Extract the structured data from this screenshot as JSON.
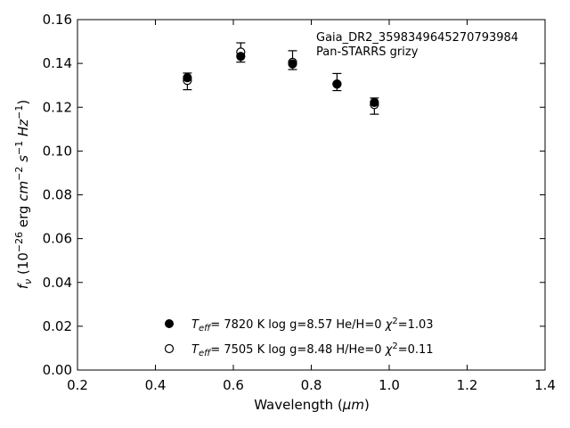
{
  "chart_data": {
    "type": "scatter",
    "title": "",
    "xlabel": "Wavelength (",
    "xlabel_unit": "μm",
    "xlabel_close": ")",
    "ylabel_parts": {
      "f": "f",
      "nu": "ν",
      "open": " (10",
      "exp_a": "−26",
      "erg": " erg ",
      "cm": "cm",
      "exp_b": "−2",
      "s": " s",
      "exp_c": "−1",
      "hz": " Hz",
      "exp_d": "−1",
      "close": ")"
    },
    "xlim": [
      0.2,
      1.4
    ],
    "ylim": [
      0.0,
      0.16
    ],
    "x_ticks": [
      "0.2",
      "0.4",
      "0.6",
      "0.8",
      "1.0",
      "1.2",
      "1.4"
    ],
    "y_ticks": [
      "0.00",
      "0.02",
      "0.04",
      "0.06",
      "0.08",
      "0.10",
      "0.12",
      "0.14",
      "0.16"
    ],
    "grid": false,
    "annotation": [
      "Gaia_DR2_3598349645270793984",
      "Pan-STARRS grizy"
    ],
    "observed": {
      "x": [
        0.482,
        0.619,
        0.752,
        0.866,
        0.962
      ],
      "y": [
        0.1318,
        0.145,
        0.1415,
        0.1315,
        0.1205
      ],
      "yerr": [
        0.0038,
        0.0044,
        0.0043,
        0.0039,
        0.0037
      ]
    },
    "series": [
      {
        "marker": "filled",
        "x": [
          0.482,
          0.619,
          0.752,
          0.866,
          0.962
        ],
        "y": [
          0.1335,
          0.1432,
          0.1398,
          0.1306,
          0.1222
        ],
        "legend": {
          "teff_pre": "T",
          "teff_sub": "eff",
          "rest": "=  7820 K  log g=8.57  He/H=0  ",
          "chi": "χ",
          "chi_sup": "2",
          "chi_val": "=1.03"
        }
      },
      {
        "marker": "open",
        "x": [
          0.482,
          0.619,
          0.752,
          0.866,
          0.962
        ],
        "y": [
          0.1322,
          0.1452,
          0.1405,
          0.1306,
          0.1212
        ],
        "legend": {
          "teff_pre": "T",
          "teff_sub": "eff",
          "rest": "=  7505 K  log g=8.48  H/He=0  ",
          "chi": "χ",
          "chi_sup": "2",
          "chi_val": "=0.11"
        }
      }
    ],
    "legend_position": "lower-center"
  }
}
